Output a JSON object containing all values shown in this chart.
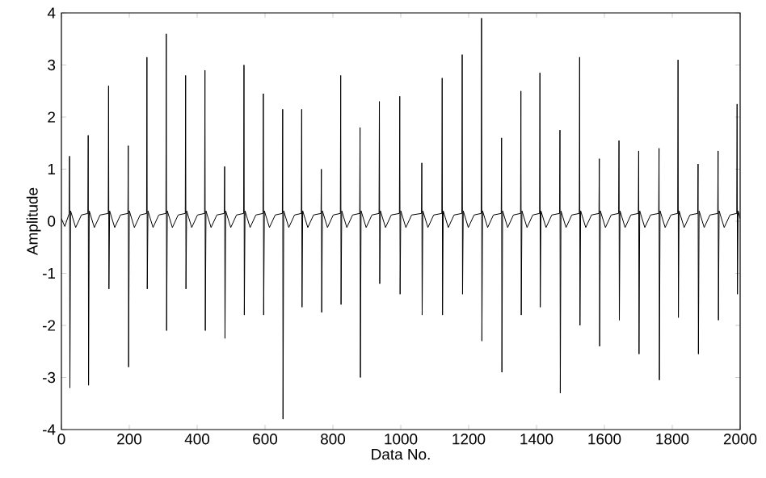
{
  "chart_data": {
    "type": "line",
    "xlabel": "Data No.",
    "ylabel": "Amplitude",
    "xlim": [
      0,
      2000
    ],
    "ylim": [
      -4,
      4
    ],
    "xticks": [
      0,
      200,
      400,
      600,
      800,
      1000,
      1200,
      1400,
      1600,
      1800,
      2000
    ],
    "yticks": [
      -4,
      -3,
      -2,
      -1,
      0,
      1,
      2,
      3,
      4
    ],
    "series": [
      {
        "color": "#000000",
        "x": [
          0,
          10,
          23,
          24,
          25,
          27,
          42,
          59,
          78,
          79,
          80,
          82,
          97,
          114,
          138,
          139,
          140,
          142,
          157,
          174,
          196,
          197,
          198,
          200,
          215,
          232,
          251,
          252,
          253,
          255,
          270,
          287,
          308,
          309,
          310,
          312,
          327,
          344,
          365,
          366,
          367,
          369,
          384,
          401,
          422,
          423,
          424,
          426,
          441,
          458,
          480,
          481,
          482,
          484,
          499,
          516,
          537,
          538,
          539,
          541,
          556,
          573,
          594,
          595,
          596,
          598,
          613,
          630,
          651,
          652,
          653,
          655,
          670,
          687,
          707,
          708,
          709,
          711,
          726,
          743,
          765,
          766,
          767,
          769,
          784,
          801,
          822,
          823,
          824,
          826,
          841,
          858,
          879,
          880,
          881,
          883,
          898,
          915,
          936,
          937,
          938,
          940,
          955,
          972,
          996,
          997,
          998,
          1000,
          1015,
          1032,
          1061,
          1062,
          1063,
          1065,
          1080,
          1097,
          1121,
          1122,
          1123,
          1125,
          1140,
          1157,
          1180,
          1181,
          1182,
          1184,
          1199,
          1216,
          1237,
          1238,
          1239,
          1241,
          1256,
          1273,
          1296,
          1297,
          1298,
          1300,
          1315,
          1332,
          1353,
          1354,
          1355,
          1357,
          1372,
          1389,
          1409,
          1410,
          1411,
          1413,
          1428,
          1445,
          1468,
          1469,
          1470,
          1472,
          1487,
          1504,
          1526,
          1527,
          1528,
          1530,
          1545,
          1562,
          1584,
          1585,
          1586,
          1588,
          1603,
          1620,
          1642,
          1643,
          1644,
          1646,
          1661,
          1678,
          1700,
          1701,
          1702,
          1704,
          1719,
          1736,
          1760,
          1761,
          1762,
          1764,
          1779,
          1796,
          1816,
          1817,
          1818,
          1820,
          1835,
          1852,
          1875,
          1876,
          1877,
          1879,
          1894,
          1911,
          1934,
          1935,
          1936,
          1938,
          1953,
          1970,
          1990,
          1991,
          1992,
          1994,
          2000
        ],
        "values": [
          0.05,
          -0.1,
          0.15,
          1.25,
          -3.2,
          0.2,
          -0.12,
          0.12,
          0.15,
          1.65,
          -3.15,
          0.2,
          -0.12,
          0.12,
          0.15,
          2.6,
          -1.3,
          0.2,
          -0.12,
          0.12,
          0.15,
          1.45,
          -2.8,
          0.2,
          -0.12,
          0.12,
          0.15,
          3.15,
          -1.3,
          0.2,
          -0.12,
          0.12,
          0.15,
          3.6,
          -2.1,
          0.2,
          -0.12,
          0.12,
          0.15,
          2.8,
          -1.3,
          0.2,
          -0.12,
          0.12,
          0.15,
          2.9,
          -2.1,
          0.2,
          -0.12,
          0.12,
          0.15,
          1.05,
          -2.25,
          0.2,
          -0.12,
          0.12,
          0.15,
          3.0,
          -1.8,
          0.2,
          -0.12,
          0.12,
          0.15,
          2.45,
          -1.8,
          0.2,
          -0.12,
          0.12,
          0.15,
          2.15,
          -3.8,
          0.2,
          -0.12,
          0.12,
          0.15,
          2.15,
          -1.65,
          0.2,
          -0.12,
          0.12,
          0.15,
          1.0,
          -1.75,
          0.2,
          -0.12,
          0.12,
          0.15,
          2.8,
          -1.6,
          0.2,
          -0.12,
          0.12,
          0.15,
          1.8,
          -3.0,
          0.2,
          -0.12,
          0.12,
          0.15,
          2.3,
          -1.2,
          0.2,
          -0.12,
          0.12,
          0.15,
          2.4,
          -1.4,
          0.2,
          -0.12,
          0.12,
          0.15,
          1.12,
          -1.8,
          0.2,
          -0.12,
          0.12,
          0.15,
          2.75,
          -1.8,
          0.2,
          -0.12,
          0.12,
          0.15,
          3.2,
          -1.4,
          0.2,
          -0.12,
          0.12,
          0.15,
          3.9,
          -2.3,
          0.2,
          -0.12,
          0.12,
          0.15,
          1.6,
          -2.9,
          0.2,
          -0.12,
          0.12,
          0.15,
          2.5,
          -1.8,
          0.2,
          -0.12,
          0.12,
          0.15,
          2.85,
          -1.65,
          0.2,
          -0.12,
          0.12,
          0.15,
          1.75,
          -3.3,
          0.2,
          -0.12,
          0.12,
          0.15,
          3.15,
          -2.0,
          0.2,
          -0.12,
          0.12,
          0.15,
          1.2,
          -2.4,
          0.2,
          -0.12,
          0.12,
          0.15,
          1.55,
          -1.9,
          0.2,
          -0.12,
          0.12,
          0.15,
          1.35,
          -2.55,
          0.2,
          -0.12,
          0.12,
          0.15,
          1.4,
          -3.05,
          0.2,
          -0.12,
          0.12,
          0.15,
          3.1,
          -1.85,
          0.2,
          -0.12,
          0.12,
          0.15,
          1.1,
          -2.55,
          0.2,
          -0.12,
          0.12,
          0.15,
          1.35,
          -1.9,
          0.2,
          -0.12,
          0.12,
          0.15,
          2.25,
          -1.4,
          0.2,
          0.05
        ]
      }
    ]
  }
}
